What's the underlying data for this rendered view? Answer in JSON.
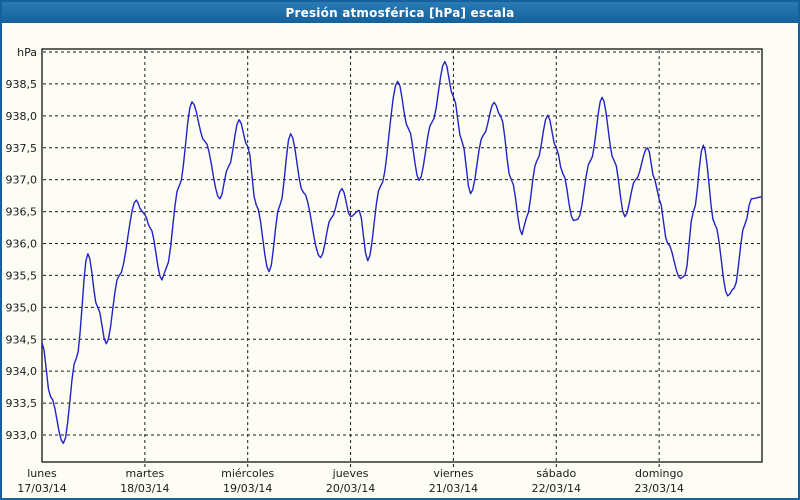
{
  "window": {
    "title": "Presión atmosférica [hPa] escala"
  },
  "colors": {
    "titlebar_blue": "#1d6da7",
    "frame_blue": "#16619c",
    "background": "#fdfdf6",
    "line_blue": "#2323c3",
    "grid_black": "#1c1c1c"
  },
  "chart_data": {
    "type": "line",
    "title": "Presión atmosférica [hPa] escala",
    "ylabel": "hPa",
    "ylim": [
      933.0,
      939.0
    ],
    "y_tick_step": 0.5,
    "grid": "dashed",
    "legend": "none",
    "line_color": "#2323c3",
    "y_ticks": [
      {
        "value": 939.0,
        "label": "hPa"
      },
      {
        "value": 938.5,
        "label": "938,5"
      },
      {
        "value": 938.0,
        "label": "938,0"
      },
      {
        "value": 937.5,
        "label": "937,5"
      },
      {
        "value": 937.0,
        "label": "937,0"
      },
      {
        "value": 936.5,
        "label": "936,5"
      },
      {
        "value": 936.0,
        "label": "936,0"
      },
      {
        "value": 935.5,
        "label": "935,5"
      },
      {
        "value": 935.0,
        "label": "935,0"
      },
      {
        "value": 934.5,
        "label": "934,5"
      },
      {
        "value": 934.0,
        "label": "934,0"
      },
      {
        "value": 933.5,
        "label": "933,5"
      },
      {
        "value": 933.0,
        "label": "933,0"
      }
    ],
    "x_axis_days": [
      {
        "name": "lunes",
        "date": "17/03/14"
      },
      {
        "name": "martes",
        "date": "18/03/14"
      },
      {
        "name": "miércoles",
        "date": "19/03/14"
      },
      {
        "name": "jueves",
        "date": "20/03/14"
      },
      {
        "name": "viernes",
        "date": "21/03/14"
      },
      {
        "name": "sábado",
        "date": "22/03/14"
      },
      {
        "name": "domingo",
        "date": "23/03/14"
      }
    ],
    "xlim_hours": [
      0,
      168
    ],
    "series": [
      {
        "name": "Presión atmosférica",
        "points_hours_hpa": [
          [
            0,
            934.45
          ],
          [
            2,
            933.6
          ],
          [
            5,
            932.87
          ],
          [
            8,
            934.2
          ],
          [
            10.7,
            935.84
          ],
          [
            13,
            935.0
          ],
          [
            15,
            934.43
          ],
          [
            18,
            935.5
          ],
          [
            22,
            936.68
          ],
          [
            23.2,
            936.52
          ],
          [
            24,
            936.45
          ],
          [
            25.2,
            936.25
          ],
          [
            28,
            935.43
          ],
          [
            29,
            935.62
          ],
          [
            32,
            936.9
          ],
          [
            35,
            938.22
          ],
          [
            38,
            937.6
          ],
          [
            41.5,
            936.7
          ],
          [
            43.5,
            937.2
          ],
          [
            46,
            937.94
          ],
          [
            48,
            937.52
          ],
          [
            50,
            936.6
          ],
          [
            53,
            935.56
          ],
          [
            55.5,
            936.6
          ],
          [
            58,
            937.72
          ],
          [
            61,
            936.8
          ],
          [
            65,
            935.78
          ],
          [
            67.5,
            936.4
          ],
          [
            70,
            936.86
          ],
          [
            72,
            936.42
          ],
          [
            74,
            936.52
          ],
          [
            76,
            935.73
          ],
          [
            79,
            936.9
          ],
          [
            83,
            938.54
          ],
          [
            85.5,
            937.8
          ],
          [
            88,
            936.99
          ],
          [
            91,
            937.9
          ],
          [
            94,
            938.85
          ],
          [
            96,
            938.3
          ],
          [
            98,
            937.6
          ],
          [
            100,
            936.78
          ],
          [
            103,
            937.7
          ],
          [
            105.5,
            938.21
          ],
          [
            107,
            938.0
          ],
          [
            109.5,
            937.0
          ],
          [
            112,
            936.14
          ],
          [
            113,
            936.4
          ],
          [
            115.5,
            937.3
          ],
          [
            118,
            938.01
          ],
          [
            120,
            937.5
          ],
          [
            121.5,
            937.1
          ],
          [
            124,
            936.36
          ],
          [
            125,
            936.38
          ],
          [
            128,
            937.3
          ],
          [
            130.7,
            938.29
          ],
          [
            133.5,
            937.3
          ],
          [
            136,
            936.42
          ],
          [
            138.5,
            937.0
          ],
          [
            141.3,
            937.5
          ],
          [
            143,
            937.0
          ],
          [
            144,
            936.7
          ],
          [
            146,
            936.0
          ],
          [
            149,
            935.45
          ],
          [
            150,
            935.5
          ],
          [
            152,
            936.5
          ],
          [
            154.3,
            937.54
          ],
          [
            157,
            936.3
          ],
          [
            160,
            935.18
          ],
          [
            161.5,
            935.3
          ],
          [
            164,
            936.3
          ],
          [
            165.5,
            936.7
          ],
          [
            168,
            936.73
          ]
        ]
      }
    ]
  }
}
